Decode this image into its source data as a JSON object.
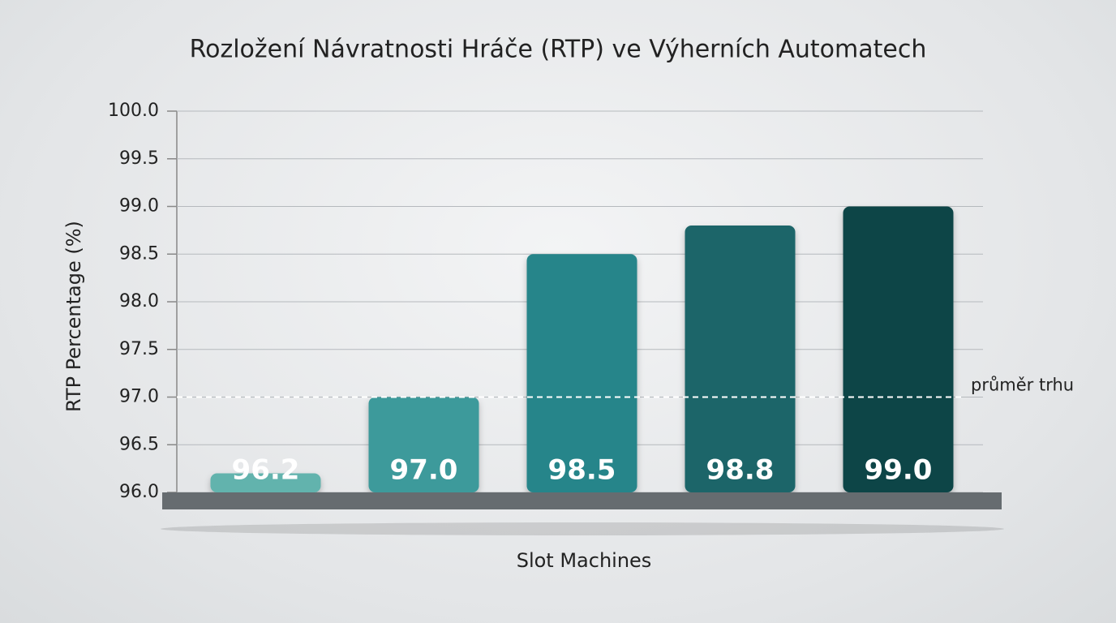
{
  "chart_data": {
    "type": "bar",
    "title": "Rozložení Návratnosti Hráče (RTP) ve Výherních Automatech",
    "x_label": "Slot Machines",
    "y_label": "RTP Percentage (%)",
    "categories": [
      null,
      null,
      null,
      null,
      null
    ],
    "values": [
      96.2,
      97.0,
      98.5,
      98.8,
      99.0
    ],
    "value_labels": [
      "96.2",
      "97.0",
      "98.5",
      "98.8",
      "99.0"
    ],
    "colors": [
      "#62b3ad",
      "#3e9a9b",
      "#27858a",
      "#1a6569",
      "#0f4547"
    ],
    "ylim": [
      96,
      100
    ],
    "yticks": [
      {
        "value": 96,
        "label": "96.0"
      },
      96.5,
      {
        "value": 97,
        "label": "97.0"
      },
      97.5,
      {
        "value": 98,
        "label": "98.0"
      },
      98.5,
      {
        "value": 99,
        "label": "99.0"
      },
      99.5,
      {
        "value": 100,
        "label": "100.0"
      }
    ],
    "grid": true,
    "reference_line": {
      "value": 97,
      "label": "průměr trhu"
    }
  }
}
